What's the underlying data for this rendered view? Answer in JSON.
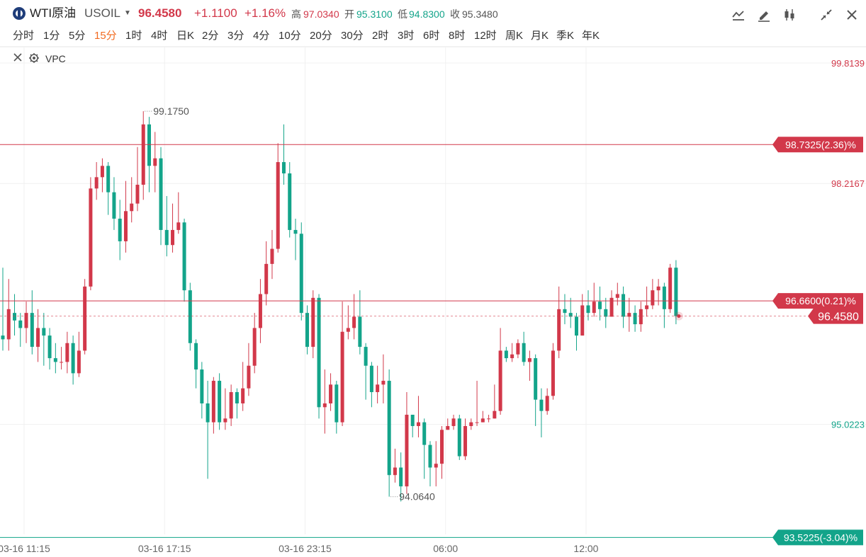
{
  "header": {
    "symbol_name": "WTI原油",
    "symbol_code": "USOIL",
    "price": "96.4580",
    "change": "+1.1100",
    "change_pct": "+1.16%",
    "high_label": "高",
    "high": "97.0340",
    "open_label": "开",
    "open": "95.3100",
    "low_label": "低",
    "low": "94.8300",
    "close_label": "收",
    "close": "95.3480"
  },
  "toolbar_icons": [
    "line-chart-icon",
    "draw-pencil-icon",
    "candlestick-icon",
    "collapse-icon",
    "close-icon"
  ],
  "periods": [
    "分时",
    "1分",
    "5分",
    "15分",
    "1时",
    "4时",
    "日K",
    "2分",
    "3分",
    "4分",
    "10分",
    "20分",
    "30分",
    "2时",
    "3时",
    "6时",
    "8时",
    "12时",
    "周K",
    "月K",
    "季K",
    "年K"
  ],
  "active_period": "15分",
  "indicator": {
    "label": "VPC"
  },
  "colors": {
    "up": "#d2384a",
    "down": "#13a48a",
    "active_period": "#f26b21"
  },
  "chart_data": {
    "type": "candlestick",
    "y_axis_ticks": [
      99.8139,
      98.2167,
      95.0223
    ],
    "y_axis_tick_labels": [
      "99.8139",
      "98.2167",
      "95.0223"
    ],
    "ylim": [
      93.47,
      100.03
    ],
    "x_axis_labels": [
      "03-16 11:15",
      "03-16 17:15",
      "03-16 23:15",
      "06:00",
      "12:00"
    ],
    "x_axis_label_index": [
      0,
      24,
      48,
      72,
      96
    ],
    "high_marker": {
      "value": 99.175,
      "label": "99.1750",
      "index": 24
    },
    "low_marker": {
      "value": 94.064,
      "label": "94.0640",
      "index": 66
    },
    "lines": [
      {
        "value": 98.7325,
        "label": "98.7325(2.36)%",
        "color": "#d2384a"
      },
      {
        "value": 96.66,
        "label": "96.6600(0.21)%",
        "color": "#d2384a"
      },
      {
        "value": 93.5225,
        "label": "93.5225(-3.04)%",
        "color": "#13a48a"
      }
    ],
    "current_price": {
      "value": 96.458,
      "label": "96.4580"
    },
    "candles": [
      [
        96.2,
        96.15,
        97.1,
        96.0
      ],
      [
        96.15,
        96.55,
        96.95,
        96.0
      ],
      [
        96.5,
        96.4,
        96.75,
        96.2
      ],
      [
        96.4,
        96.3,
        96.5,
        96.05
      ],
      [
        96.3,
        96.5,
        96.65,
        96.1
      ],
      [
        96.5,
        96.05,
        96.8,
        95.95
      ],
      [
        96.05,
        96.3,
        96.55,
        95.85
      ],
      [
        96.3,
        96.2,
        96.5,
        95.8
      ],
      [
        96.2,
        95.9,
        96.3,
        95.75
      ],
      [
        95.9,
        95.85,
        96.1,
        95.7
      ],
      [
        95.85,
        95.85,
        96.05,
        95.75
      ],
      [
        95.85,
        96.1,
        96.25,
        95.7
      ],
      [
        96.1,
        95.7,
        96.2,
        95.55
      ],
      [
        95.7,
        96.0,
        96.25,
        95.65
      ],
      [
        96.0,
        96.85,
        96.95,
        95.95
      ],
      [
        96.85,
        98.15,
        98.3,
        96.8
      ],
      [
        98.15,
        98.3,
        98.5,
        98.0
      ],
      [
        98.3,
        98.45,
        98.55,
        98.1
      ],
      [
        98.45,
        98.1,
        98.5,
        97.8
      ],
      [
        98.1,
        97.75,
        98.3,
        97.6
      ],
      [
        97.75,
        97.45,
        98.0,
        97.2
      ],
      [
        97.45,
        97.85,
        98.25,
        97.3
      ],
      [
        97.85,
        97.95,
        98.3,
        97.7
      ],
      [
        97.95,
        98.2,
        98.7,
        97.85
      ],
      [
        98.2,
        99.0,
        99.175,
        98.0
      ],
      [
        99.0,
        98.45,
        99.1,
        98.1
      ],
      [
        98.45,
        98.55,
        98.9,
        98.1
      ],
      [
        98.55,
        97.6,
        98.7,
        97.4
      ],
      [
        97.6,
        97.4,
        98.05,
        97.25
      ],
      [
        97.4,
        97.6,
        97.95,
        97.3
      ],
      [
        97.6,
        97.7,
        98.1,
        97.55
      ],
      [
        97.7,
        96.8,
        97.75,
        96.65
      ],
      [
        96.8,
        96.1,
        96.9,
        96.0
      ],
      [
        96.1,
        95.75,
        96.15,
        95.5
      ],
      [
        95.75,
        95.3,
        95.85,
        95.1
      ],
      [
        95.3,
        95.05,
        95.6,
        94.3
      ],
      [
        95.05,
        95.6,
        95.65,
        94.9
      ],
      [
        95.6,
        95.05,
        95.7,
        94.95
      ],
      [
        95.05,
        95.1,
        95.5,
        94.95
      ],
      [
        95.1,
        95.45,
        95.55,
        95.0
      ],
      [
        95.45,
        95.3,
        95.5,
        95.1
      ],
      [
        95.3,
        95.5,
        95.85,
        95.2
      ],
      [
        95.5,
        95.8,
        96.1,
        95.4
      ],
      [
        95.8,
        96.3,
        96.5,
        95.7
      ],
      [
        96.3,
        96.75,
        96.95,
        96.1
      ],
      [
        96.75,
        97.15,
        97.45,
        96.6
      ],
      [
        97.15,
        97.35,
        97.6,
        96.95
      ],
      [
        97.35,
        98.5,
        98.75,
        97.3
      ],
      [
        98.5,
        98.35,
        99.0,
        98.2
      ],
      [
        98.35,
        97.6,
        98.5,
        97.5
      ],
      [
        97.6,
        97.55,
        97.75,
        97.2
      ],
      [
        97.55,
        96.5,
        97.7,
        96.4
      ],
      [
        96.5,
        96.05,
        96.6,
        95.95
      ],
      [
        96.05,
        96.7,
        96.8,
        95.9
      ],
      [
        96.7,
        95.25,
        96.75,
        95.1
      ],
      [
        95.25,
        95.3,
        95.75,
        94.9
      ],
      [
        95.3,
        95.55,
        95.7,
        95.2
      ],
      [
        95.55,
        95.05,
        95.6,
        94.9
      ],
      [
        95.05,
        96.25,
        96.65,
        95.0
      ],
      [
        96.25,
        96.3,
        96.6,
        96.15
      ],
      [
        96.3,
        96.45,
        96.75,
        96.15
      ],
      [
        96.45,
        96.05,
        96.8,
        95.95
      ],
      [
        96.05,
        95.8,
        96.1,
        95.35
      ],
      [
        95.8,
        95.45,
        95.85,
        95.25
      ],
      [
        95.45,
        95.55,
        95.8,
        95.3
      ],
      [
        95.55,
        95.6,
        95.95,
        95.3
      ],
      [
        95.6,
        94.35,
        95.75,
        94.064
      ],
      [
        94.35,
        94.45,
        94.7,
        94.25
      ],
      [
        94.45,
        94.2,
        94.65,
        94.0
      ],
      [
        94.2,
        95.15,
        95.45,
        94.1
      ],
      [
        95.15,
        95.0,
        95.15,
        94.85
      ],
      [
        95.0,
        95.05,
        95.4,
        94.85
      ],
      [
        95.05,
        94.75,
        95.1,
        94.3
      ],
      [
        94.75,
        94.45,
        94.8,
        94.2
      ],
      [
        94.45,
        94.5,
        94.8,
        94.2
      ],
      [
        94.5,
        94.95,
        95.0,
        94.3
      ],
      [
        94.95,
        95.0,
        95.1,
        94.95
      ],
      [
        95.0,
        95.1,
        95.15,
        94.95
      ],
      [
        95.1,
        94.6,
        95.15,
        94.55
      ],
      [
        94.6,
        95.0,
        95.1,
        94.55
      ],
      [
        95.0,
        95.05,
        95.1,
        94.95
      ],
      [
        95.05,
        95.05,
        95.6,
        95.0
      ],
      [
        95.05,
        95.1,
        95.2,
        95.05
      ],
      [
        95.1,
        95.1,
        95.15,
        95.05
      ],
      [
        95.1,
        95.2,
        95.55,
        95.1
      ],
      [
        95.2,
        96.0,
        96.3,
        95.15
      ],
      [
        96.0,
        95.9,
        96.05,
        95.85
      ],
      [
        95.9,
        95.95,
        96.1,
        95.85
      ],
      [
        95.95,
        96.1,
        96.15,
        95.9
      ],
      [
        96.1,
        95.85,
        96.25,
        95.8
      ],
      [
        95.85,
        95.9,
        96.0,
        95.6
      ],
      [
        95.9,
        95.35,
        95.95,
        95.0
      ],
      [
        95.35,
        95.2,
        95.5,
        94.85
      ],
      [
        95.2,
        95.4,
        95.5,
        95.15
      ],
      [
        95.4,
        96.0,
        96.1,
        95.35
      ],
      [
        96.0,
        96.55,
        96.85,
        95.9
      ],
      [
        96.55,
        96.5,
        96.75,
        96.35
      ],
      [
        96.5,
        96.45,
        96.7,
        96.3
      ],
      [
        96.45,
        96.2,
        96.5,
        96.0
      ],
      [
        96.2,
        96.6,
        96.75,
        96.2
      ],
      [
        96.6,
        96.5,
        96.8,
        96.4
      ],
      [
        96.5,
        96.65,
        96.9,
        96.45
      ],
      [
        96.65,
        96.55,
        96.85,
        96.4
      ],
      [
        96.55,
        96.45,
        96.7,
        96.3
      ],
      [
        96.45,
        96.7,
        96.8,
        96.45
      ],
      [
        96.7,
        96.75,
        96.9,
        96.6
      ],
      [
        96.75,
        96.45,
        96.85,
        96.3
      ],
      [
        96.45,
        96.5,
        96.7,
        96.25
      ],
      [
        96.5,
        96.35,
        96.6,
        96.25
      ],
      [
        96.35,
        96.55,
        96.65,
        96.25
      ],
      [
        96.55,
        96.6,
        96.85,
        96.45
      ],
      [
        96.6,
        96.8,
        96.95,
        96.55
      ],
      [
        96.8,
        96.85,
        96.95,
        96.6
      ],
      [
        96.85,
        96.55,
        96.9,
        96.3
      ],
      [
        96.55,
        97.1,
        97.15,
        96.5
      ],
      [
        97.1,
        96.458,
        97.2,
        96.35
      ]
    ]
  }
}
